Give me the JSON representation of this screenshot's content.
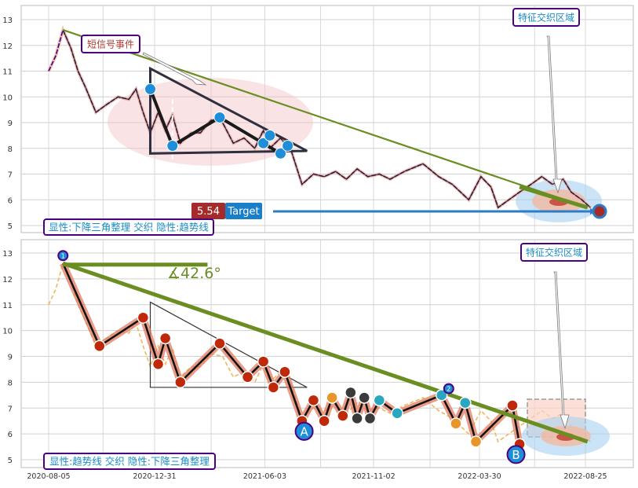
{
  "chart_data": [
    {
      "type": "line",
      "panel": "top",
      "y_ticks": [
        5,
        6,
        7,
        8,
        9,
        10,
        11,
        12,
        13
      ],
      "ylim": [
        4.8,
        13.5
      ],
      "grid": true,
      "series": [
        {
          "name": "",
          "points": [
            [
              "2020-08-05",
              11.0
            ],
            [
              "2020-08-15",
              11.6
            ],
            [
              "2020-08-25",
              12.6
            ],
            [
              "2020-09-05",
              11.9
            ],
            [
              "2020-09-15",
              11.0
            ],
            [
              "2020-09-25",
              10.4
            ],
            [
              "2020-10-10",
              9.4
            ],
            [
              "2020-10-25",
              9.7
            ],
            [
              "2020-11-10",
              10.0
            ],
            [
              "2020-11-25",
              9.9
            ],
            [
              "2020-12-05",
              10.3
            ],
            [
              "2020-12-15",
              9.4
            ],
            [
              "2020-12-25",
              8.6
            ],
            [
              "2021-01-05",
              9.4
            ],
            [
              "2021-01-15",
              8.7
            ],
            [
              "2021-01-25",
              9.3
            ],
            [
              "2021-02-05",
              8.2
            ],
            [
              "2021-02-20",
              8.6
            ],
            [
              "2021-03-05",
              8.6
            ],
            [
              "2021-03-20",
              9.1
            ],
            [
              "2021-04-05",
              9.0
            ],
            [
              "2021-04-20",
              8.2
            ],
            [
              "2021-05-05",
              8.4
            ],
            [
              "2021-05-20",
              8.0
            ],
            [
              "2021-06-01",
              8.7
            ],
            [
              "2021-06-10",
              8.0
            ],
            [
              "2021-06-25",
              8.4
            ],
            [
              "2021-07-10",
              7.9
            ],
            [
              "2021-07-25",
              6.6
            ],
            [
              "2021-08-10",
              7.0
            ],
            [
              "2021-08-25",
              6.9
            ],
            [
              "2021-09-10",
              7.1
            ],
            [
              "2021-09-25",
              6.8
            ],
            [
              "2021-10-10",
              7.2
            ],
            [
              "2021-10-25",
              6.9
            ],
            [
              "2021-11-10",
              7.0
            ],
            [
              "2021-11-25",
              6.8
            ],
            [
              "2021-12-15",
              7.1
            ],
            [
              "2022-01-10",
              7.4
            ],
            [
              "2022-02-01",
              6.9
            ],
            [
              "2022-02-20",
              6.6
            ],
            [
              "2022-03-15",
              6.0
            ],
            [
              "2022-04-01",
              6.9
            ],
            [
              "2022-04-15",
              6.5
            ],
            [
              "2022-04-25",
              5.7
            ],
            [
              "2022-05-10",
              6.0
            ],
            [
              "2022-05-25",
              6.3
            ],
            [
              "2022-06-10",
              6.6
            ],
            [
              "2022-06-25",
              6.9
            ],
            [
              "2022-07-10",
              6.6
            ],
            [
              "2022-07-25",
              6.8
            ],
            [
              "2022-08-05",
              6.3
            ],
            [
              "2022-08-20",
              6.0
            ],
            [
              "2022-09-01",
              5.7
            ]
          ]
        }
      ],
      "trendline": {
        "points": [
          [
            "2020-08-25",
            12.6
          ],
          [
            "2022-08-28",
            5.7
          ]
        ]
      },
      "triangle": {
        "points": [
          [
            "2020-12-25",
            11.1
          ],
          [
            "2021-08-01",
            7.9
          ],
          [
            "2020-12-25",
            7.8
          ]
        ]
      },
      "pivot_markers": [
        [
          "2020-12-25",
          10.3
        ],
        [
          "2021-01-25",
          8.1
        ],
        [
          "2021-04-01",
          9.2
        ],
        [
          "2021-06-01",
          8.2
        ],
        [
          "2021-06-10",
          8.5
        ],
        [
          "2021-06-25",
          7.8
        ],
        [
          "2021-07-05",
          8.1
        ]
      ],
      "target_marker": [
        "2022-09-05",
        5.55
      ],
      "target_value_label": "5.54",
      "target_text": "Target",
      "annotations": {
        "short_signal": "短信号事件",
        "feature_zone": "特征交织区域",
        "legend": "显性:下降三角整理 交织 隐性:趋势线"
      }
    },
    {
      "type": "line",
      "panel": "bottom",
      "y_ticks": [
        5,
        6,
        7,
        8,
        9,
        10,
        11,
        12,
        13
      ],
      "ylim": [
        4.8,
        13.5
      ],
      "grid": true,
      "x_ticks": [
        "2020-08-05",
        "2020-12-31",
        "2021-06-03",
        "2021-11-02",
        "2022-03-30",
        "2022-08-25"
      ],
      "zigzag": [
        [
          "2020-08-25",
          12.6
        ],
        [
          "2020-10-15",
          9.4
        ],
        [
          "2020-12-15",
          10.5
        ],
        [
          "2021-01-05",
          8.7
        ],
        [
          "2021-01-15",
          9.7
        ],
        [
          "2021-02-05",
          8.0
        ],
        [
          "2021-04-01",
          9.5
        ],
        [
          "2021-05-10",
          8.2
        ],
        [
          "2021-06-01",
          8.8
        ],
        [
          "2021-06-15",
          7.8
        ],
        [
          "2021-07-01",
          8.4
        ],
        [
          "2021-07-25",
          6.5
        ],
        [
          "2021-08-10",
          7.3
        ],
        [
          "2021-08-25",
          6.5
        ],
        [
          "2021-09-05",
          7.4
        ],
        [
          "2021-09-20",
          6.7
        ],
        [
          "2021-10-01",
          7.6
        ],
        [
          "2021-10-10",
          6.6
        ],
        [
          "2021-10-20",
          7.4
        ],
        [
          "2021-10-28",
          6.6
        ],
        [
          "2021-11-10",
          7.3
        ],
        [
          "2021-12-05",
          6.8
        ],
        [
          "2022-02-05",
          7.5
        ],
        [
          "2022-02-25",
          6.4
        ],
        [
          "2022-03-10",
          7.2
        ],
        [
          "2022-03-25",
          5.7
        ],
        [
          "2022-05-15",
          7.1
        ],
        [
          "2022-05-25",
          5.6
        ]
      ],
      "numbered_markers": [
        {
          "date": "2020-08-25",
          "value": 12.9,
          "label": "1"
        },
        {
          "date": "2022-02-15",
          "value": 7.75,
          "label": "2"
        }
      ],
      "trendline": {
        "points": [
          [
            "2020-08-25",
            12.6
          ],
          [
            "2022-08-28",
            5.7
          ]
        ]
      },
      "flat_line": {
        "points": [
          [
            "2020-08-25",
            12.55
          ],
          [
            "2021-03-15",
            12.55
          ]
        ]
      },
      "triangle": {
        "points": [
          [
            "2020-12-25",
            11.1
          ],
          [
            "2021-08-01",
            7.8
          ],
          [
            "2020-12-25",
            7.8
          ]
        ]
      },
      "angle_label": "∡42.6°",
      "point_labels": [
        {
          "date": "2021-07-28",
          "value": 6.1,
          "label": "A"
        },
        {
          "date": "2022-05-20",
          "value": 5.2,
          "label": "B"
        }
      ],
      "annotations": {
        "feature_zone": "特征交织区域",
        "legend": "显性:趋势线 交织 隐性:下降三角整理"
      }
    }
  ],
  "colors": {
    "price": "#4b0082",
    "trend": "#6b8e23",
    "pivot": "#1f8ed8",
    "target_blue": "#2e7dc4",
    "target_red": "#a52a2a",
    "zigzag": "#e07a5f",
    "label_border": "#4b0082",
    "label_text_blue": "#1a8bc4",
    "label_text_red": "#b03a2e"
  }
}
